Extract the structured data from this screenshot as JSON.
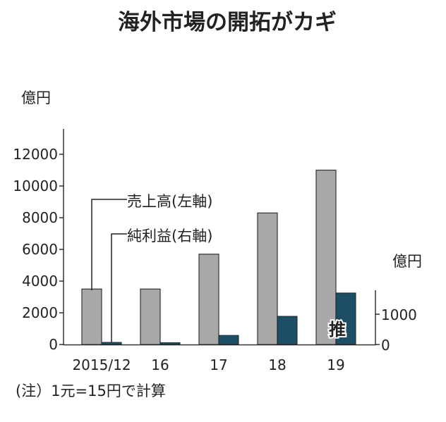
{
  "chart_data": {
    "type": "bar",
    "title": "海外市場の開拓がカギ",
    "categories": [
      "2015/12",
      "16",
      "17",
      "18",
      "19"
    ],
    "series": [
      {
        "name": "売上高(左軸)",
        "axis": "left",
        "color": "#a8a8a8",
        "values": [
          3500,
          3500,
          5700,
          8300,
          11000
        ]
      },
      {
        "name": "純利益(右軸)",
        "axis": "right",
        "color": "#1d4e66",
        "values": [
          70,
          60,
          300,
          930,
          1700
        ]
      }
    ],
    "left_axis": {
      "unit": "億円",
      "ylim": [
        0,
        12000
      ],
      "ticks": [
        "0",
        "2000",
        "4000",
        "6000",
        "8000",
        "10000",
        "12000"
      ]
    },
    "right_axis": {
      "unit": "億円",
      "ylim": [
        0,
        1800
      ],
      "ticks": [
        "0",
        "1000"
      ]
    },
    "annotation": "推",
    "note": "(注）1元=15円で計算"
  }
}
